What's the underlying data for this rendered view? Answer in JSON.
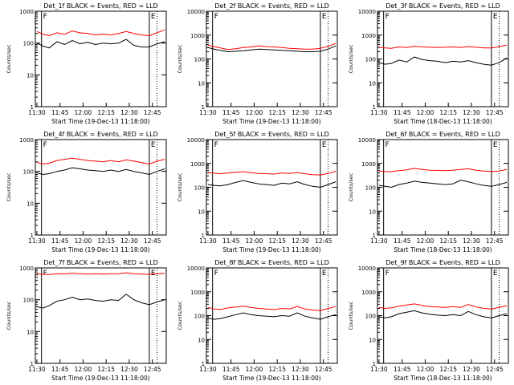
{
  "x_tick_labels": [
    "11:30",
    "11:45",
    "12:00",
    "12:15",
    "12:30",
    "12:45"
  ],
  "colors": {
    "events": "#000000",
    "lld": "#ff0000",
    "axis": "#000000"
  },
  "chart_data": [
    {
      "type": "line",
      "title": "Det_1f BLACK = Events, RED = LLD",
      "xlabel": "Start Time (19-Dec-13 11:18:00)",
      "ylabel": "Counts/sec",
      "ytick_labels": [
        "1",
        "10",
        "100",
        "1000"
      ],
      "yscale": "log",
      "ylim": [
        1,
        1000
      ],
      "xlim_minutes": [
        11.0,
        96.0
      ],
      "markers": [
        {
          "label": "F",
          "x": 15.0
        },
        {
          "label": "E",
          "x": 85.0
        }
      ],
      "dotted_x": [
        90.0
      ],
      "x": [
        12,
        16,
        20,
        25,
        30,
        35,
        40,
        45,
        50,
        55,
        60,
        65,
        70,
        75,
        80,
        85,
        90,
        95
      ],
      "series": [
        {
          "name": "BLACK",
          "color": "#000000",
          "values": [
            100,
            80,
            70,
            110,
            90,
            120,
            95,
            105,
            90,
            100,
            95,
            100,
            130,
            85,
            75,
            75,
            95,
            110
          ]
        },
        {
          "name": "RED",
          "color": "#ff0000",
          "values": [
            230,
            190,
            170,
            210,
            190,
            240,
            210,
            200,
            180,
            190,
            180,
            200,
            230,
            200,
            180,
            170,
            210,
            260
          ]
        }
      ]
    },
    {
      "type": "line",
      "title": "Det_2f BLACK = Events, RED = LLD",
      "xlabel": "Start Time (19-Dec-13 11:18:00)",
      "ylabel": "Counts/sec",
      "ytick_labels": [
        "1",
        "10",
        "100",
        "1000",
        "10000"
      ],
      "yscale": "log",
      "ylim": [
        1,
        10000
      ],
      "xlim_minutes": [
        11.0,
        96.0
      ],
      "markers": [
        {
          "label": "F",
          "x": 15.0
        },
        {
          "label": "E",
          "x": 85.0
        }
      ],
      "dotted_x": [
        90.0
      ],
      "x": [
        12,
        16,
        20,
        25,
        30,
        35,
        40,
        45,
        50,
        55,
        60,
        65,
        70,
        75,
        80,
        85,
        90,
        95
      ],
      "series": [
        {
          "name": "BLACK",
          "color": "#000000",
          "values": [
            300,
            260,
            230,
            200,
            210,
            220,
            240,
            260,
            250,
            240,
            230,
            220,
            210,
            200,
            200,
            210,
            260,
            350
          ]
        },
        {
          "name": "RED",
          "color": "#ff0000",
          "values": [
            380,
            330,
            290,
            250,
            270,
            300,
            320,
            350,
            330,
            320,
            300,
            280,
            270,
            260,
            260,
            280,
            340,
            450
          ]
        }
      ]
    },
    {
      "type": "line",
      "title": "Det_3f BLACK = Events, RED = LLD",
      "xlabel": "Start Time (18-Dec-13 11:18:00)",
      "ylabel": "Counts/sec",
      "ytick_labels": [
        "1",
        "10",
        "100",
        "1000",
        "10000"
      ],
      "yscale": "log",
      "ylim": [
        1,
        10000
      ],
      "xlim_minutes": [
        11.0,
        96.0
      ],
      "markers": [
        {
          "label": "F",
          "x": 15.0
        },
        {
          "label": "E",
          "x": 85.0
        }
      ],
      "dotted_x": [
        90.0
      ],
      "x": [
        12,
        16,
        20,
        25,
        30,
        35,
        40,
        45,
        50,
        55,
        60,
        65,
        70,
        75,
        80,
        85,
        90,
        95
      ],
      "series": [
        {
          "name": "BLACK",
          "color": "#000000",
          "values": [
            70,
            60,
            65,
            90,
            75,
            120,
            95,
            85,
            80,
            70,
            80,
            75,
            85,
            70,
            60,
            55,
            70,
            110
          ]
        },
        {
          "name": "RED",
          "color": "#ff0000",
          "values": [
            310,
            290,
            280,
            320,
            300,
            340,
            320,
            310,
            300,
            310,
            320,
            300,
            330,
            310,
            290,
            290,
            330,
            380
          ]
        }
      ]
    },
    {
      "type": "line",
      "title": "Det_4f BLACK = Events, RED = LLD",
      "xlabel": "Start Time (19-Dec-13 11:18:00)",
      "ylabel": "Counts/sec",
      "ytick_labels": [
        "1",
        "10",
        "100",
        "1000"
      ],
      "yscale": "log",
      "ylim": [
        1,
        1000
      ],
      "xlim_minutes": [
        11.0,
        96.0
      ],
      "markers": [
        {
          "label": "F",
          "x": 15.0
        },
        {
          "label": "E",
          "x": 85.0
        }
      ],
      "dotted_x": [
        90.0
      ],
      "x": [
        12,
        16,
        20,
        25,
        30,
        35,
        40,
        45,
        50,
        55,
        60,
        65,
        70,
        75,
        80,
        85,
        90,
        95
      ],
      "series": [
        {
          "name": "BLACK",
          "color": "#000000",
          "values": [
            90,
            80,
            85,
            100,
            110,
            130,
            120,
            110,
            105,
            100,
            110,
            100,
            115,
            100,
            90,
            80,
            100,
            120
          ]
        },
        {
          "name": "RED",
          "color": "#ff0000",
          "values": [
            190,
            170,
            180,
            220,
            240,
            260,
            240,
            220,
            210,
            200,
            220,
            200,
            230,
            210,
            190,
            170,
            210,
            240
          ]
        }
      ]
    },
    {
      "type": "line",
      "title": "Det_5f BLACK = Events, RED = LLD",
      "xlabel": "Start Time (19-Dec-13 11:18:00)",
      "ylabel": "Counts/sec",
      "ytick_labels": [
        "1",
        "10",
        "100",
        "1000",
        "10000"
      ],
      "yscale": "log",
      "ylim": [
        1,
        10000
      ],
      "xlim_minutes": [
        11.0,
        96.0
      ],
      "markers": [
        {
          "label": "F",
          "x": 15.0
        },
        {
          "label": "E",
          "x": 85.0
        }
      ],
      "dotted_x": [
        90.0
      ],
      "x": [
        12,
        16,
        20,
        25,
        30,
        35,
        40,
        45,
        50,
        55,
        60,
        65,
        70,
        75,
        80,
        85,
        90,
        95
      ],
      "series": [
        {
          "name": "BLACK",
          "color": "#000000",
          "values": [
            130,
            120,
            115,
            130,
            160,
            190,
            160,
            140,
            130,
            120,
            150,
            140,
            170,
            130,
            110,
            100,
            130,
            170
          ]
        },
        {
          "name": "RED",
          "color": "#ff0000",
          "values": [
            420,
            390,
            370,
            400,
            430,
            450,
            410,
            380,
            370,
            360,
            400,
            380,
            420,
            370,
            340,
            330,
            380,
            470
          ]
        }
      ]
    },
    {
      "type": "line",
      "title": "Det_6f BLACK = Events, RED = LLD",
      "xlabel": "Start Time (18-Dec-13 11:18:00)",
      "ylabel": "Counts/sec",
      "ytick_labels": [
        "1",
        "10",
        "100",
        "1000",
        "10000"
      ],
      "yscale": "log",
      "ylim": [
        1,
        10000
      ],
      "xlim_minutes": [
        11.0,
        96.0
      ],
      "markers": [
        {
          "label": "F",
          "x": 15.0
        },
        {
          "label": "E",
          "x": 85.0
        }
      ],
      "dotted_x": [
        90.0
      ],
      "x": [
        12,
        16,
        20,
        25,
        30,
        35,
        40,
        45,
        50,
        55,
        60,
        65,
        70,
        75,
        80,
        85,
        90,
        95
      ],
      "series": [
        {
          "name": "BLACK",
          "color": "#000000",
          "values": [
            120,
            110,
            100,
            130,
            150,
            180,
            160,
            150,
            140,
            130,
            140,
            200,
            170,
            140,
            120,
            110,
            130,
            160
          ]
        },
        {
          "name": "RED",
          "color": "#ff0000",
          "values": [
            480,
            460,
            450,
            500,
            540,
            620,
            560,
            520,
            510,
            500,
            520,
            560,
            600,
            520,
            480,
            460,
            480,
            560
          ]
        }
      ]
    },
    {
      "type": "line",
      "title": "Det_7f BLACK = Events, RED = LLD",
      "xlabel": "Start Time (19-Dec-13 11:18:00)",
      "ylabel": "Counts/sec",
      "ytick_labels": [
        "1",
        "10",
        "100",
        "1000"
      ],
      "yscale": "log",
      "ylim": [
        1,
        1000
      ],
      "xlim_minutes": [
        11.0,
        96.0
      ],
      "markers": [
        {
          "label": "F",
          "x": 15.0
        },
        {
          "label": "E",
          "x": 85.0
        }
      ],
      "dotted_x": [
        90.0
      ],
      "x": [
        12,
        16,
        20,
        25,
        30,
        35,
        40,
        45,
        50,
        55,
        60,
        65,
        70,
        75,
        80,
        85,
        90,
        95
      ],
      "series": [
        {
          "name": "BLACK",
          "color": "#000000",
          "values": [
            60,
            55,
            65,
            90,
            100,
            120,
            100,
            105,
            95,
            90,
            100,
            95,
            150,
            100,
            80,
            70,
            85,
            100
          ]
        },
        {
          "name": "RED",
          "color": "#ff0000",
          "values": [
            650,
            630,
            620,
            660,
            650,
            680,
            660,
            640,
            650,
            640,
            650,
            660,
            700,
            660,
            640,
            630,
            650,
            670
          ]
        }
      ]
    },
    {
      "type": "line",
      "title": "Det_8f BLACK = Events, RED = LLD",
      "xlabel": "Start Time (19-Dec-13 11:18:00)",
      "ylabel": "Counts/sec",
      "ytick_labels": [
        "1",
        "10",
        "100",
        "1000",
        "10000"
      ],
      "yscale": "log",
      "ylim": [
        1,
        10000
      ],
      "xlim_minutes": [
        11.0,
        96.0
      ],
      "markers": [
        {
          "label": "F",
          "x": 15.0
        },
        {
          "label": "E",
          "x": 85.0
        }
      ],
      "dotted_x": [
        90.0
      ],
      "x": [
        12,
        16,
        20,
        25,
        30,
        35,
        40,
        45,
        50,
        55,
        60,
        65,
        70,
        75,
        80,
        85,
        90,
        95
      ],
      "series": [
        {
          "name": "BLACK",
          "color": "#000000",
          "values": [
            80,
            70,
            75,
            90,
            110,
            130,
            110,
            100,
            95,
            90,
            100,
            95,
            130,
            95,
            80,
            70,
            90,
            110
          ]
        },
        {
          "name": "RED",
          "color": "#ff0000",
          "values": [
            220,
            190,
            180,
            210,
            230,
            250,
            220,
            200,
            190,
            180,
            200,
            190,
            240,
            190,
            170,
            160,
            200,
            240
          ]
        }
      ]
    },
    {
      "type": "line",
      "title": "Det_9f BLACK = Events, RED = LLD",
      "xlabel": "Start Time (18-Dec-13 11:18:00)",
      "ylabel": "Counts/sec",
      "ytick_labels": [
        "1",
        "10",
        "100",
        "1000",
        "10000"
      ],
      "yscale": "log",
      "ylim": [
        1,
        10000
      ],
      "xlim_minutes": [
        11.0,
        96.0
      ],
      "markers": [
        {
          "label": "F",
          "x": 15.0
        },
        {
          "label": "E",
          "x": 85.0
        }
      ],
      "dotted_x": [
        90.0
      ],
      "x": [
        12,
        16,
        20,
        25,
        30,
        35,
        40,
        45,
        50,
        55,
        60,
        65,
        70,
        75,
        80,
        85,
        90,
        95
      ],
      "series": [
        {
          "name": "BLACK",
          "color": "#000000",
          "values": [
            90,
            80,
            90,
            120,
            140,
            160,
            130,
            115,
            105,
            100,
            110,
            100,
            150,
            110,
            90,
            80,
            100,
            120
          ]
        },
        {
          "name": "RED",
          "color": "#ff0000",
          "values": [
            220,
            200,
            210,
            250,
            280,
            310,
            270,
            240,
            230,
            220,
            240,
            220,
            290,
            230,
            200,
            190,
            220,
            260
          ]
        }
      ]
    }
  ]
}
